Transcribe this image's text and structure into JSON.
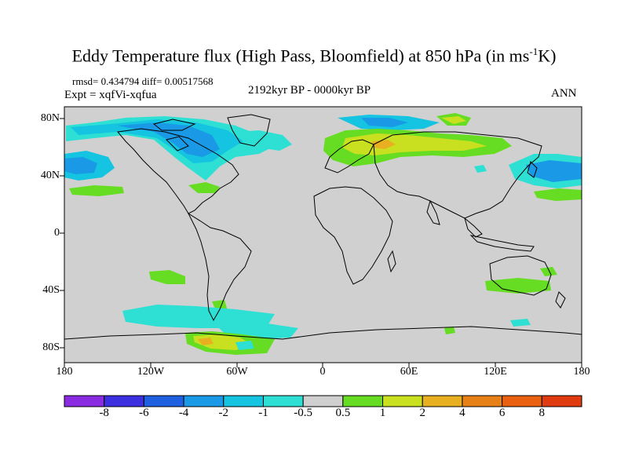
{
  "title_main": "Eddy Temperature flux (High Pass, Bloomfield) at 850 hPa (in ms",
  "title_sup": "-1",
  "title_end": "K)",
  "stats": {
    "rmsd_diff": "rmsd= 0.434794 diff= 0.00517568",
    "expt": "Expt = xqfVi-xqfua",
    "period": "2192kyr BP - 0000kyr BP",
    "season": "ANN"
  },
  "x_ticks": [
    "180",
    "120W",
    "60W",
    "0",
    "60E",
    "120E",
    "180"
  ],
  "y_ticks": [
    "80N",
    "40N",
    "0",
    "40S",
    "80S"
  ],
  "legend": {
    "labels": [
      "-8",
      "-6",
      "-4",
      "-2",
      "-1",
      "-0.5",
      "0.5",
      "1",
      "2",
      "4",
      "6",
      "8"
    ],
    "colors": [
      "#8a2be2",
      "#3b2fe0",
      "#1e60e0",
      "#1a9ae6",
      "#14c4e0",
      "#2ee0d4",
      "#cfcfcf",
      "#66dd22",
      "#c8e020",
      "#e8b020",
      "#e88018",
      "#e86010",
      "#e03a10"
    ]
  },
  "colors": {
    "background": "#d0d0d0",
    "coast": "#000000",
    "neg_light": "#2ee0d4",
    "neg_mid": "#14c4e0",
    "neg_dark": "#1a9ae6",
    "pos_light": "#66dd22",
    "pos_mid": "#c8e020",
    "pos_dark": "#e8b020",
    "pos_hot": "#e88018"
  }
}
